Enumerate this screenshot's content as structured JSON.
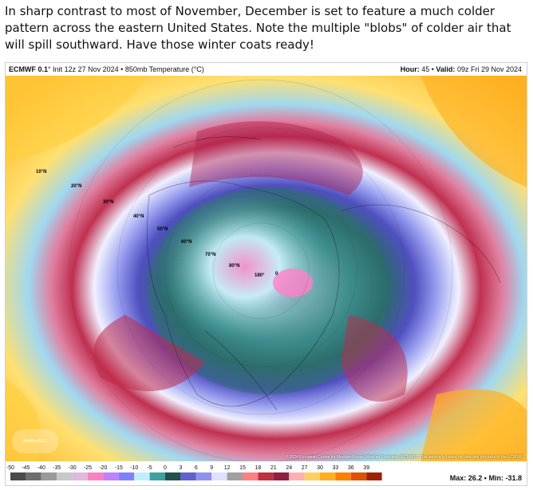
{
  "caption": "In sharp contrast to most of November, December is set to feature a much colder pattern across the eastern United States. Note the multiple \"blobs\" of colder air that will spill southward. Have those winter coats ready!",
  "header": {
    "model": "ECMWF 0.1",
    "init": "° Init 12z 27 Nov 2024 • 850mb Temperature (°C)",
    "hour_label": "Hour:",
    "hour_value": "45",
    "valid_label": "Valid:",
    "valid_value": "09z Fri 29 Nov 2024"
  },
  "map_labels": {
    "lat10": "10°N",
    "lat20": "20°N",
    "lat30": "30°N",
    "lat40": "40°N",
    "lat50": "50°N",
    "lat60": "60°N",
    "lat70": "70°N",
    "lat80": "80°N",
    "lon180": "180°",
    "lon0": "0"
  },
  "copyright": "© 2024 European Centre for Medium-Range Weather Forecasts (ECMWF). This service is based on data and products of the ECMWF.",
  "logo_text": "WeatherBELL",
  "colorbar": {
    "ticks": [
      "-50",
      "-45",
      "-40",
      "-35",
      "-30",
      "-25",
      "-20",
      "-15",
      "-10",
      "-5",
      "0",
      "3",
      "6",
      "9",
      "12",
      "15",
      "18",
      "21",
      "24",
      "27",
      "30",
      "33",
      "36",
      "39"
    ],
    "colors": [
      "#4b4b4b",
      "#6e6e6e",
      "#9a9a9a",
      "#c8c8c8",
      "#e0b8e0",
      "#ff80c0",
      "#c080ff",
      "#8080ff",
      "#bfefff",
      "#40a0a0",
      "#205050",
      "#6060d0",
      "#9090f0",
      "#e0e0ff",
      "#a0a0a0",
      "#ff8080",
      "#c03040",
      "#902040",
      "#ffb0b0",
      "#ffd060",
      "#ffb020",
      "#ff8000",
      "#e05000",
      "#a02000"
    ]
  },
  "maxmin": {
    "max_label": "Max:",
    "max_value": "26.2",
    "min_label": "Min:",
    "min_value": "-31.8"
  }
}
